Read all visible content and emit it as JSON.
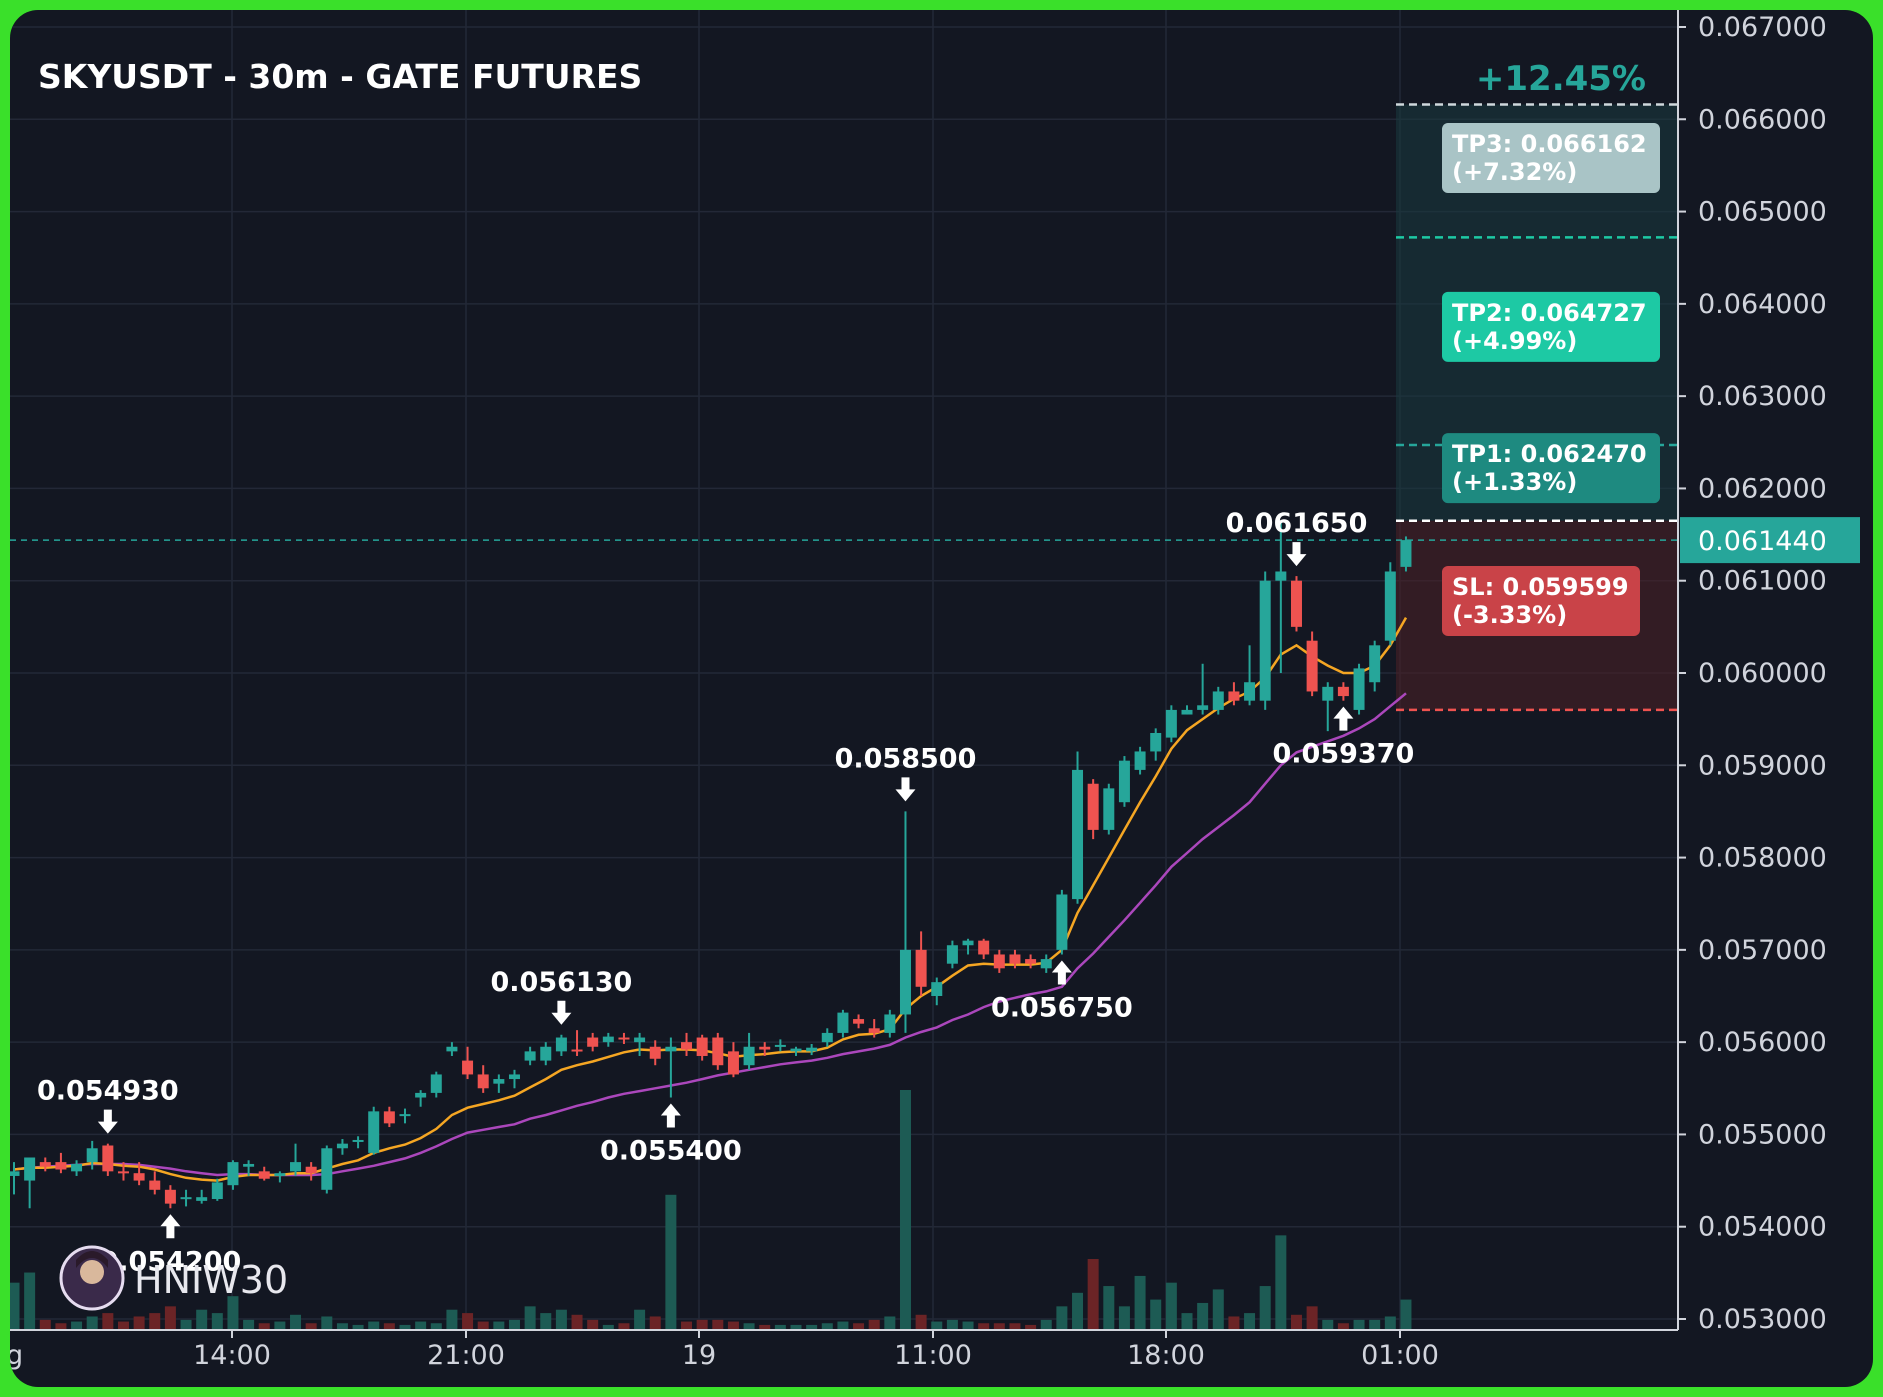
{
  "chart_data": {
    "type": "candlestick",
    "title": "SKYUSDT - 30m - GATE FUTURES",
    "watermark": "HNIW30",
    "ylim": [
      0.0529,
      0.0671
    ],
    "y_ticks": [
      "0.067000",
      "0.066000",
      "0.065000",
      "0.064000",
      "0.063000",
      "0.062000",
      "0.061000",
      "0.060000",
      "0.059000",
      "0.058000",
      "0.057000",
      "0.056000",
      "0.055000",
      "0.054000",
      "0.053000"
    ],
    "x_ticks": [
      "14:00",
      "21:00",
      "19",
      "11:00",
      "18:00",
      "01:00"
    ],
    "x_cut_label": "g",
    "current_price": "0.061440",
    "colors": {
      "up": "#26a69a",
      "down": "#ef5350",
      "ema_fast": "#f5a623",
      "ema_slow": "#ab47bc",
      "grid": "#232837",
      "axis_text": "#d1d4dc",
      "current_line": "#26a69a",
      "volume_up": "#1d5b54",
      "volume_down": "#6b2426"
    },
    "candles": [
      {
        "o": 0.05455,
        "h": 0.0547,
        "l": 0.05435,
        "c": 0.0546,
        "v": 28
      },
      {
        "o": 0.0545,
        "h": 0.05475,
        "l": 0.0542,
        "c": 0.05475,
        "v": 34
      },
      {
        "o": 0.0547,
        "h": 0.05475,
        "l": 0.0546,
        "c": 0.05465,
        "v": 6
      },
      {
        "o": 0.0547,
        "h": 0.0548,
        "l": 0.05458,
        "c": 0.05462,
        "v": 4
      },
      {
        "o": 0.0546,
        "h": 0.05472,
        "l": 0.05455,
        "c": 0.05468,
        "v": 5
      },
      {
        "o": 0.0547,
        "h": 0.05493,
        "l": 0.05462,
        "c": 0.05485,
        "v": 8
      },
      {
        "o": 0.05488,
        "h": 0.0549,
        "l": 0.05455,
        "c": 0.0546,
        "v": 10
      },
      {
        "o": 0.0546,
        "h": 0.0547,
        "l": 0.0545,
        "c": 0.05458,
        "v": 5
      },
      {
        "o": 0.05458,
        "h": 0.0547,
        "l": 0.05445,
        "c": 0.0545,
        "v": 8
      },
      {
        "o": 0.0545,
        "h": 0.0546,
        "l": 0.05435,
        "c": 0.0544,
        "v": 10
      },
      {
        "o": 0.0544,
        "h": 0.05445,
        "l": 0.0542,
        "c": 0.05425,
        "v": 14
      },
      {
        "o": 0.0543,
        "h": 0.0544,
        "l": 0.05422,
        "c": 0.05432,
        "v": 6
      },
      {
        "o": 0.05428,
        "h": 0.0544,
        "l": 0.05425,
        "c": 0.05432,
        "v": 12
      },
      {
        "o": 0.0543,
        "h": 0.05452,
        "l": 0.05428,
        "c": 0.05448,
        "v": 10
      },
      {
        "o": 0.05445,
        "h": 0.05472,
        "l": 0.0544,
        "c": 0.0547,
        "v": 20
      },
      {
        "o": 0.05465,
        "h": 0.05472,
        "l": 0.05455,
        "c": 0.05468,
        "v": 6
      },
      {
        "o": 0.0546,
        "h": 0.05465,
        "l": 0.0545,
        "c": 0.05452,
        "v": 4
      },
      {
        "o": 0.05455,
        "h": 0.0546,
        "l": 0.05448,
        "c": 0.05458,
        "v": 5
      },
      {
        "o": 0.0546,
        "h": 0.0549,
        "l": 0.05455,
        "c": 0.0547,
        "v": 9
      },
      {
        "o": 0.05465,
        "h": 0.0547,
        "l": 0.0545,
        "c": 0.05458,
        "v": 4
      },
      {
        "o": 0.0544,
        "h": 0.05488,
        "l": 0.05436,
        "c": 0.05485,
        "v": 8
      },
      {
        "o": 0.05485,
        "h": 0.05495,
        "l": 0.05478,
        "c": 0.0549,
        "v": 4
      },
      {
        "o": 0.05492,
        "h": 0.05498,
        "l": 0.05485,
        "c": 0.05494,
        "v": 3
      },
      {
        "o": 0.0548,
        "h": 0.0553,
        "l": 0.05478,
        "c": 0.05525,
        "v": 5
      },
      {
        "o": 0.05525,
        "h": 0.0553,
        "l": 0.05508,
        "c": 0.05512,
        "v": 4
      },
      {
        "o": 0.0552,
        "h": 0.05528,
        "l": 0.05512,
        "c": 0.05522,
        "v": 3
      },
      {
        "o": 0.0554,
        "h": 0.05548,
        "l": 0.0553,
        "c": 0.05545,
        "v": 5
      },
      {
        "o": 0.05545,
        "h": 0.05568,
        "l": 0.0554,
        "c": 0.05565,
        "v": 4
      },
      {
        "o": 0.0559,
        "h": 0.056,
        "l": 0.05585,
        "c": 0.05595,
        "v": 12
      },
      {
        "o": 0.0558,
        "h": 0.05595,
        "l": 0.0556,
        "c": 0.05565,
        "v": 10
      },
      {
        "o": 0.05565,
        "h": 0.05575,
        "l": 0.05545,
        "c": 0.0555,
        "v": 5
      },
      {
        "o": 0.05555,
        "h": 0.05565,
        "l": 0.05545,
        "c": 0.0556,
        "v": 5
      },
      {
        "o": 0.0556,
        "h": 0.0557,
        "l": 0.0555,
        "c": 0.05565,
        "v": 6
      },
      {
        "o": 0.0558,
        "h": 0.05595,
        "l": 0.05575,
        "c": 0.0559,
        "v": 14
      },
      {
        "o": 0.0558,
        "h": 0.056,
        "l": 0.05575,
        "c": 0.05595,
        "v": 10
      },
      {
        "o": 0.0559,
        "h": 0.05608,
        "l": 0.05585,
        "c": 0.05605,
        "v": 12
      },
      {
        "o": 0.05592,
        "h": 0.05613,
        "l": 0.05585,
        "c": 0.0559,
        "v": 9
      },
      {
        "o": 0.05605,
        "h": 0.0561,
        "l": 0.0559,
        "c": 0.05595,
        "v": 6
      },
      {
        "o": 0.056,
        "h": 0.0561,
        "l": 0.05595,
        "c": 0.05606,
        "v": 3
      },
      {
        "o": 0.05605,
        "h": 0.0561,
        "l": 0.05598,
        "c": 0.05604,
        "v": 4
      },
      {
        "o": 0.056,
        "h": 0.0561,
        "l": 0.05585,
        "c": 0.05605,
        "v": 12
      },
      {
        "o": 0.05595,
        "h": 0.05602,
        "l": 0.05575,
        "c": 0.05582,
        "v": 8
      },
      {
        "o": 0.0559,
        "h": 0.05605,
        "l": 0.0554,
        "c": 0.05595,
        "v": 80
      },
      {
        "o": 0.056,
        "h": 0.0561,
        "l": 0.05585,
        "c": 0.05592,
        "v": 5
      },
      {
        "o": 0.05605,
        "h": 0.05608,
        "l": 0.0558,
        "c": 0.05585,
        "v": 6
      },
      {
        "o": 0.05605,
        "h": 0.0561,
        "l": 0.0557,
        "c": 0.05575,
        "v": 6
      },
      {
        "o": 0.0559,
        "h": 0.056,
        "l": 0.05562,
        "c": 0.05565,
        "v": 5
      },
      {
        "o": 0.05575,
        "h": 0.0561,
        "l": 0.0557,
        "c": 0.05595,
        "v": 4
      },
      {
        "o": 0.05595,
        "h": 0.056,
        "l": 0.05585,
        "c": 0.05592,
        "v": 3
      },
      {
        "o": 0.05595,
        "h": 0.05603,
        "l": 0.0559,
        "c": 0.05597,
        "v": 3
      },
      {
        "o": 0.0559,
        "h": 0.05595,
        "l": 0.05585,
        "c": 0.05593,
        "v": 3
      },
      {
        "o": 0.0559,
        "h": 0.05598,
        "l": 0.05586,
        "c": 0.05594,
        "v": 3
      },
      {
        "o": 0.056,
        "h": 0.05615,
        "l": 0.05595,
        "c": 0.0561,
        "v": 4
      },
      {
        "o": 0.0561,
        "h": 0.05635,
        "l": 0.05605,
        "c": 0.05632,
        "v": 5
      },
      {
        "o": 0.05625,
        "h": 0.0563,
        "l": 0.05615,
        "c": 0.0562,
        "v": 4
      },
      {
        "o": 0.05615,
        "h": 0.05625,
        "l": 0.05605,
        "c": 0.0561,
        "v": 6
      },
      {
        "o": 0.0561,
        "h": 0.05635,
        "l": 0.05605,
        "c": 0.0563,
        "v": 8
      },
      {
        "o": 0.0563,
        "h": 0.0585,
        "l": 0.0561,
        "c": 0.057,
        "v": 142
      },
      {
        "o": 0.057,
        "h": 0.0572,
        "l": 0.0565,
        "c": 0.0566,
        "v": 9
      },
      {
        "o": 0.0565,
        "h": 0.0567,
        "l": 0.0564,
        "c": 0.05665,
        "v": 5
      },
      {
        "o": 0.05685,
        "h": 0.0571,
        "l": 0.0568,
        "c": 0.05705,
        "v": 6
      },
      {
        "o": 0.05705,
        "h": 0.05712,
        "l": 0.05695,
        "c": 0.0571,
        "v": 5
      },
      {
        "o": 0.0571,
        "h": 0.05712,
        "l": 0.0569,
        "c": 0.05695,
        "v": 4
      },
      {
        "o": 0.05695,
        "h": 0.057,
        "l": 0.05675,
        "c": 0.0568,
        "v": 4
      },
      {
        "o": 0.05695,
        "h": 0.057,
        "l": 0.0568,
        "c": 0.05685,
        "v": 4
      },
      {
        "o": 0.0569,
        "h": 0.05695,
        "l": 0.0568,
        "c": 0.05685,
        "v": 3
      },
      {
        "o": 0.0568,
        "h": 0.05695,
        "l": 0.05675,
        "c": 0.0569,
        "v": 6
      },
      {
        "o": 0.057,
        "h": 0.05765,
        "l": 0.05695,
        "c": 0.0576,
        "v": 14
      },
      {
        "o": 0.05755,
        "h": 0.05915,
        "l": 0.0575,
        "c": 0.05895,
        "v": 22
      },
      {
        "o": 0.0588,
        "h": 0.05885,
        "l": 0.0582,
        "c": 0.0583,
        "v": 42
      },
      {
        "o": 0.0583,
        "h": 0.0588,
        "l": 0.05825,
        "c": 0.05875,
        "v": 26
      },
      {
        "o": 0.0586,
        "h": 0.0591,
        "l": 0.05855,
        "c": 0.05905,
        "v": 14
      },
      {
        "o": 0.05895,
        "h": 0.0592,
        "l": 0.0589,
        "c": 0.05915,
        "v": 32
      },
      {
        "o": 0.05915,
        "h": 0.0594,
        "l": 0.05905,
        "c": 0.05935,
        "v": 18
      },
      {
        "o": 0.0593,
        "h": 0.05965,
        "l": 0.05925,
        "c": 0.0596,
        "v": 28
      },
      {
        "o": 0.05955,
        "h": 0.05965,
        "l": 0.05955,
        "c": 0.0596,
        "v": 10
      },
      {
        "o": 0.0596,
        "h": 0.0601,
        "l": 0.05955,
        "c": 0.05965,
        "v": 16
      },
      {
        "o": 0.0596,
        "h": 0.05985,
        "l": 0.05955,
        "c": 0.0598,
        "v": 24
      },
      {
        "o": 0.0598,
        "h": 0.0599,
        "l": 0.05965,
        "c": 0.0597,
        "v": 8
      },
      {
        "o": 0.0597,
        "h": 0.0603,
        "l": 0.05965,
        "c": 0.0599,
        "v": 10
      },
      {
        "o": 0.0597,
        "h": 0.0611,
        "l": 0.0596,
        "c": 0.061,
        "v": 26
      },
      {
        "o": 0.061,
        "h": 0.06165,
        "l": 0.06,
        "c": 0.0611,
        "v": 56
      },
      {
        "o": 0.061,
        "h": 0.06105,
        "l": 0.06045,
        "c": 0.0605,
        "v": 9
      },
      {
        "o": 0.06035,
        "h": 0.06045,
        "l": 0.05975,
        "c": 0.0598,
        "v": 14
      },
      {
        "o": 0.0597,
        "h": 0.0599,
        "l": 0.05937,
        "c": 0.05985,
        "v": 6
      },
      {
        "o": 0.05985,
        "h": 0.0599,
        "l": 0.0597,
        "c": 0.05975,
        "v": 4
      },
      {
        "o": 0.0596,
        "h": 0.0601,
        "l": 0.05955,
        "c": 0.06005,
        "v": 6
      },
      {
        "o": 0.0599,
        "h": 0.06035,
        "l": 0.0598,
        "c": 0.0603,
        "v": 6
      },
      {
        "o": 0.06035,
        "h": 0.0612,
        "l": 0.0603,
        "c": 0.0611,
        "v": 8
      },
      {
        "o": 0.06115,
        "h": 0.06148,
        "l": 0.0611,
        "c": 0.06144,
        "v": 18
      }
    ],
    "ema_fast": [
      0.05462,
      0.05464,
      0.05464,
      0.05465,
      0.05466,
      0.05469,
      0.05468,
      0.05466,
      0.05465,
      0.05462,
      0.05457,
      0.05453,
      0.05451,
      0.0545,
      0.05454,
      0.05456,
      0.05456,
      0.05456,
      0.05458,
      0.05458,
      0.05463,
      0.05468,
      0.05472,
      0.0548,
      0.05485,
      0.05489,
      0.05496,
      0.05506,
      0.05521,
      0.05529,
      0.05533,
      0.05537,
      0.05542,
      0.05551,
      0.0556,
      0.0557,
      0.05575,
      0.05579,
      0.05584,
      0.05589,
      0.05592,
      0.05591,
      0.05592,
      0.05592,
      0.05591,
      0.05588,
      0.05584,
      0.05586,
      0.05587,
      0.05589,
      0.0559,
      0.0559,
      0.05594,
      0.05603,
      0.05608,
      0.05609,
      0.05614,
      0.05636,
      0.0565,
      0.0566,
      0.05672,
      0.05683,
      0.05685,
      0.05684,
      0.05684,
      0.05684,
      0.05686,
      0.057,
      0.0574,
      0.0577,
      0.058,
      0.0583,
      0.0586,
      0.05888,
      0.05918,
      0.05938,
      0.0595,
      0.05962,
      0.05972,
      0.0598,
      0.05995,
      0.0602,
      0.0603,
      0.06018,
      0.06008,
      0.06,
      0.06,
      0.06008,
      0.0603,
      0.0606
    ],
    "ema_slow": [
      0.05462,
      0.05464,
      0.05465,
      0.05466,
      0.05467,
      0.05468,
      0.05468,
      0.05468,
      0.05467,
      0.05465,
      0.05463,
      0.0546,
      0.05458,
      0.05456,
      0.05457,
      0.05457,
      0.05456,
      0.05456,
      0.05456,
      0.05456,
      0.05457,
      0.0546,
      0.05463,
      0.05466,
      0.0547,
      0.05474,
      0.0548,
      0.05487,
      0.05495,
      0.05502,
      0.05505,
      0.05508,
      0.05511,
      0.05517,
      0.05521,
      0.05526,
      0.05531,
      0.05535,
      0.0554,
      0.05544,
      0.05547,
      0.0555,
      0.05553,
      0.05556,
      0.0556,
      0.05564,
      0.05567,
      0.0557,
      0.05573,
      0.05576,
      0.05578,
      0.0558,
      0.05583,
      0.05587,
      0.0559,
      0.05593,
      0.05597,
      0.05605,
      0.05611,
      0.05616,
      0.05624,
      0.0563,
      0.05638,
      0.05644,
      0.05648,
      0.05652,
      0.05655,
      0.0566,
      0.0568,
      0.05696,
      0.05714,
      0.05732,
      0.05751,
      0.0577,
      0.0579,
      0.05805,
      0.0582,
      0.05833,
      0.05846,
      0.0586,
      0.0588,
      0.059,
      0.05914,
      0.0592,
      0.05926,
      0.05932,
      0.0594,
      0.0595,
      0.05964,
      0.05978
    ],
    "labels": [
      {
        "i": 6,
        "text": "0.054930",
        "kind": "high"
      },
      {
        "i": 10,
        "text": "0.054200",
        "kind": "low"
      },
      {
        "i": 35,
        "text": "0.056130",
        "kind": "high"
      },
      {
        "i": 42,
        "text": "0.055400",
        "kind": "low"
      },
      {
        "i": 57,
        "text": "0.058500",
        "kind": "high"
      },
      {
        "i": 67,
        "text": "0.056750",
        "kind": "low"
      },
      {
        "i": 82,
        "text": "0.061650",
        "kind": "high"
      },
      {
        "i": 85,
        "text": "0.059370",
        "kind": "low"
      }
    ],
    "trade": {
      "gain_text": "+12.45%",
      "entry": 0.06165,
      "tp1": 0.06247,
      "tp1_text": "TP1: 0.062470",
      "tp1_pct": "(+1.33%)",
      "tp2": 0.06472,
      "tp2_text": "TP2: 0.064727",
      "tp2_pct": "(+4.99%)",
      "tp3": 0.06616,
      "tp3_text": "TP3: 0.066162",
      "tp3_pct": "(+7.32%)",
      "sl": 0.0596,
      "sl_text": "SL: 0.059599",
      "sl_pct": "(-3.33%)"
    }
  }
}
